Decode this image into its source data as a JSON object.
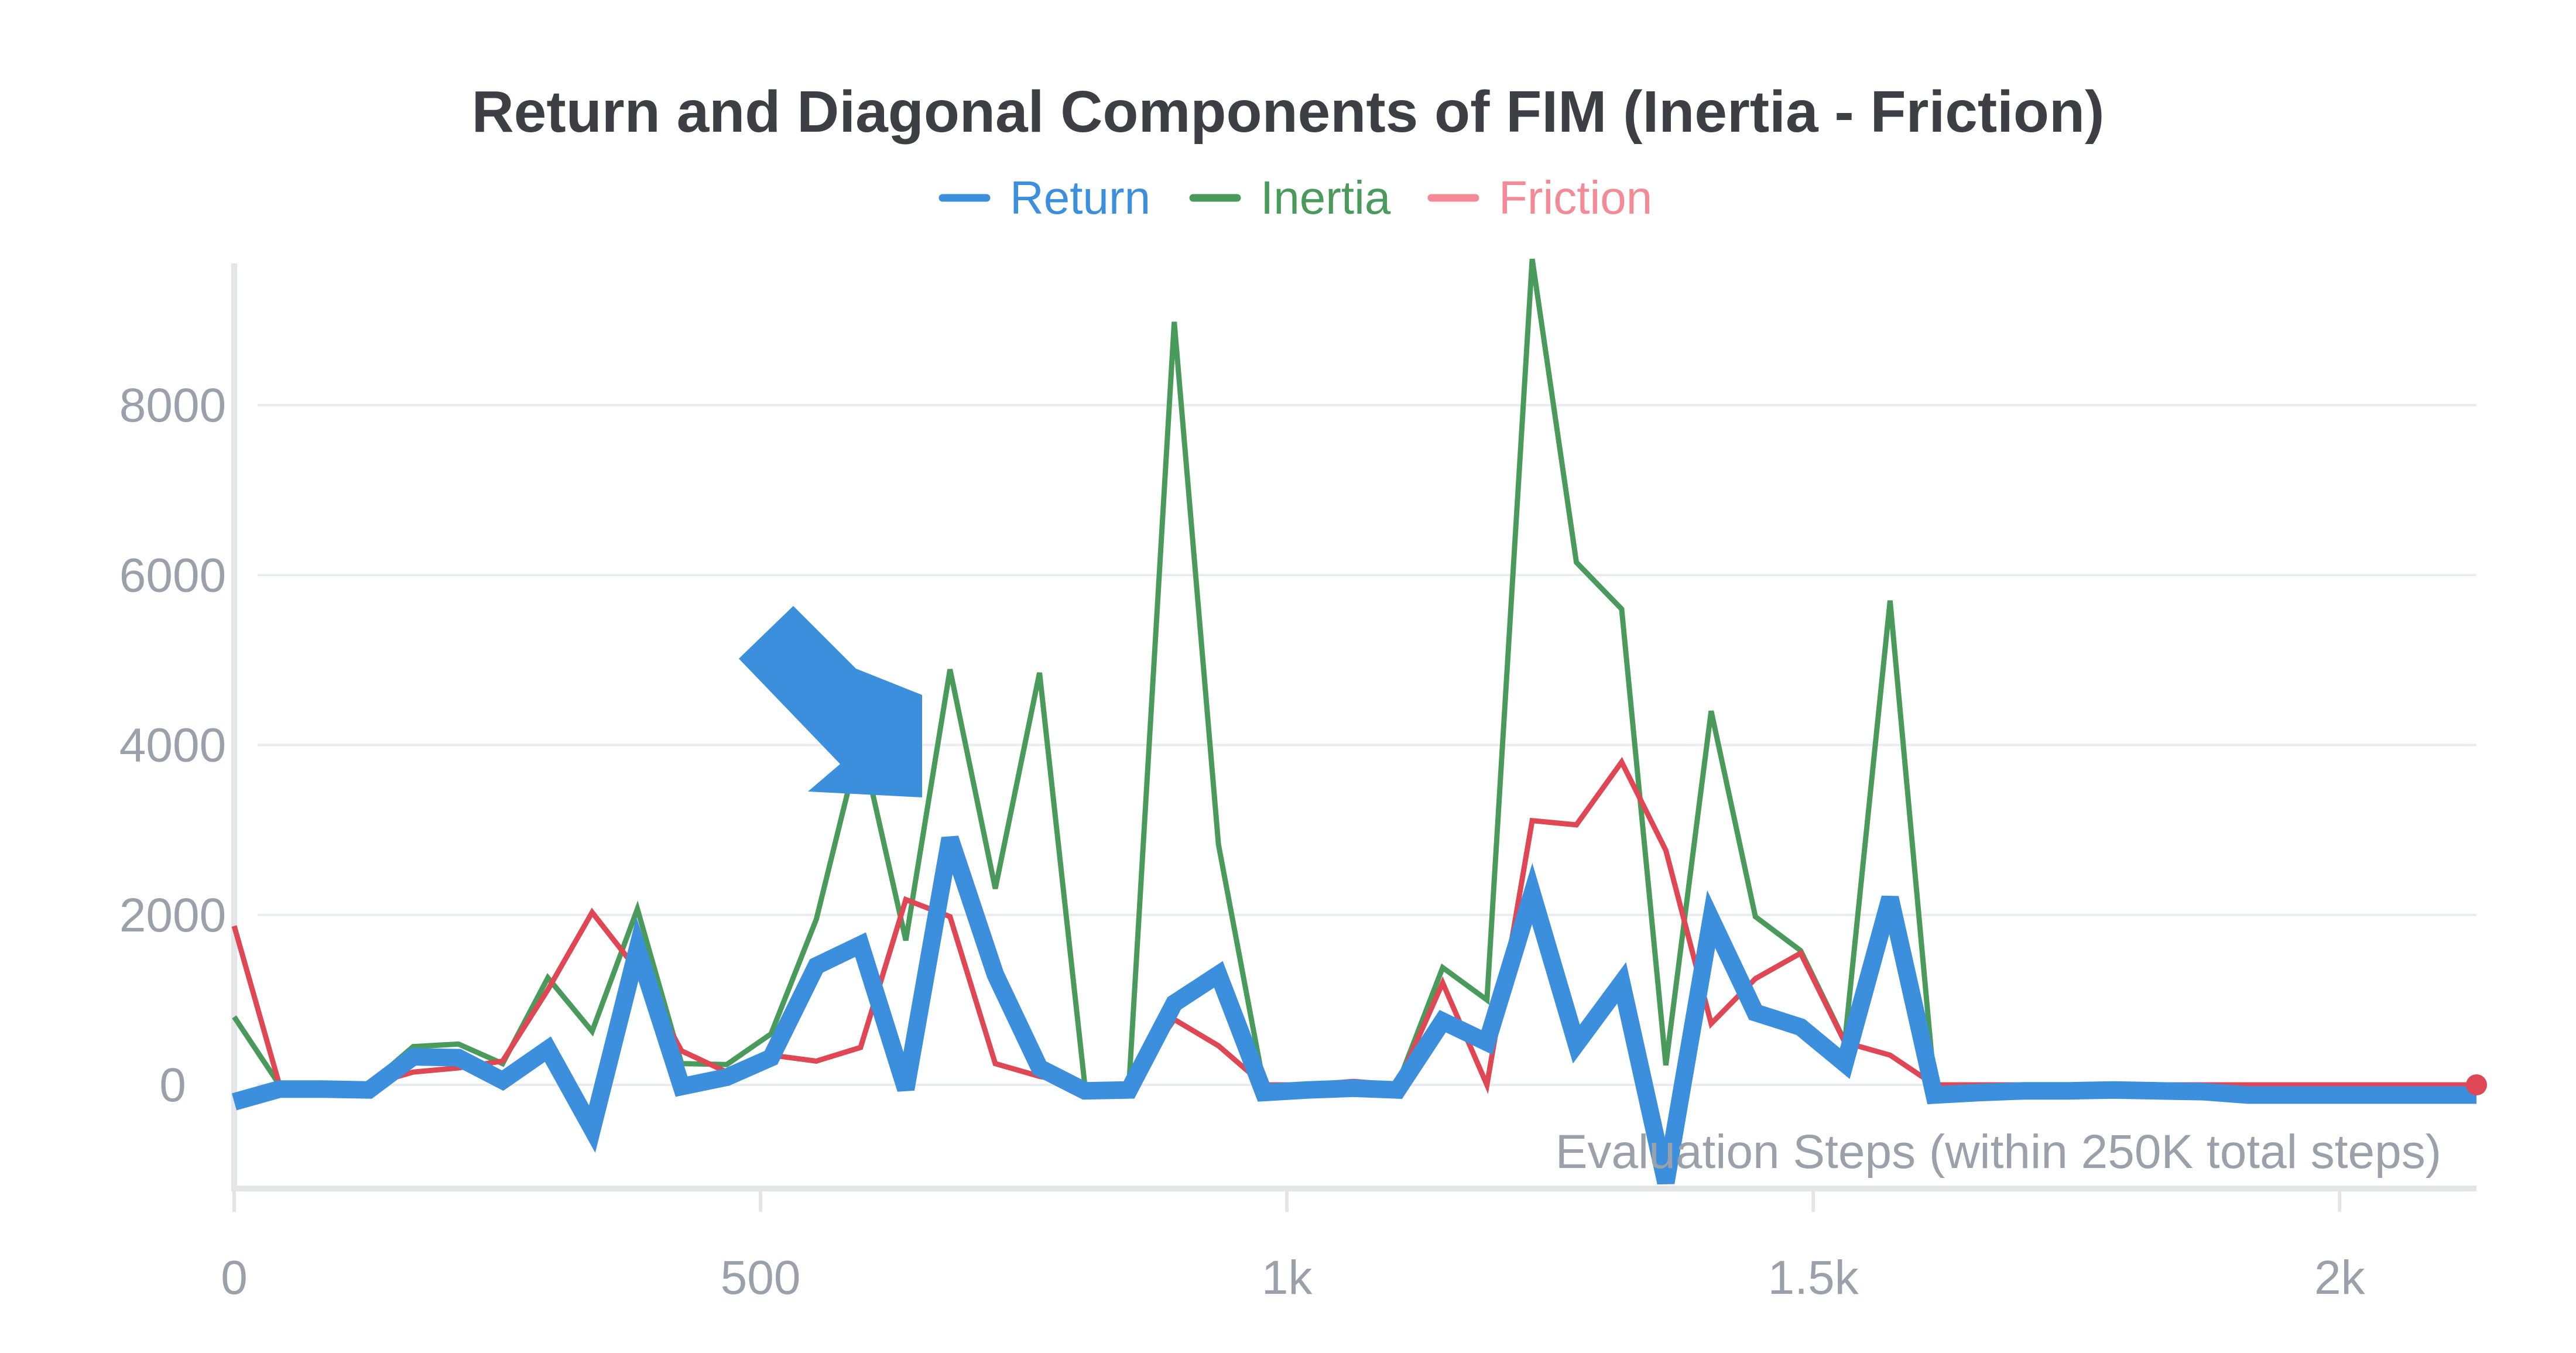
{
  "chart_data": {
    "type": "line",
    "title": "Return and Diagonal Components of FIM (Inertia - Friction)",
    "xlabel": "Evaluation Steps (within 250K total steps)",
    "ylabel": "",
    "xlim": [
      0,
      2130
    ],
    "ylim": [
      -1150,
      9700
    ],
    "x_ticks": [
      0,
      500,
      1000,
      1500,
      2000
    ],
    "x_tick_labels": [
      "0",
      "500",
      "1k",
      "1.5k",
      "2k"
    ],
    "y_ticks": [
      0,
      2000,
      4000,
      6000,
      8000
    ],
    "y_tick_labels": [
      "0",
      "2000",
      "4000",
      "6000",
      "8000"
    ],
    "grid": true,
    "legend_position": "top-center",
    "x": [
      0,
      43,
      85,
      128,
      170,
      213,
      255,
      298,
      340,
      383,
      425,
      468,
      510,
      553,
      595,
      638,
      680,
      723,
      765,
      808,
      850,
      893,
      935,
      978,
      1020,
      1063,
      1105,
      1148,
      1190,
      1233,
      1275,
      1318,
      1360,
      1403,
      1445,
      1488,
      1530,
      1573,
      1615,
      1658,
      1700,
      1743,
      1785,
      1828,
      1870,
      1913,
      1955,
      1998,
      2040,
      2083,
      2130
    ],
    "series": [
      {
        "name": "Return",
        "color": "#3b8fdc",
        "values": [
          -200,
          -50,
          -50,
          -60,
          330,
          320,
          50,
          420,
          -520,
          1600,
          -20,
          90,
          320,
          1400,
          1650,
          -50,
          2900,
          1300,
          200,
          -70,
          -60,
          960,
          1300,
          -90,
          -60,
          -40,
          -60,
          750,
          500,
          2250,
          480,
          1200,
          -1150,
          1950,
          850,
          680,
          250,
          2200,
          -120,
          -90,
          -70,
          -70,
          -60,
          -70,
          -80,
          -120,
          -120,
          -120,
          -120,
          -120,
          -120
        ]
      },
      {
        "name": "Inertia",
        "color": "#4a9a5c",
        "values": [
          800,
          0,
          0,
          0,
          450,
          480,
          250,
          1260,
          630,
          2070,
          250,
          240,
          600,
          1950,
          4060,
          1700,
          4890,
          2310,
          4850,
          0,
          0,
          8980,
          2830,
          0,
          0,
          0,
          0,
          1380,
          1000,
          9720,
          6150,
          5600,
          230,
          4400,
          1980,
          1580,
          510,
          5700,
          0,
          0,
          0,
          0,
          0,
          0,
          0,
          0,
          0,
          0,
          0,
          0,
          0
        ]
      },
      {
        "name": "Friction",
        "color": "#e04755",
        "values": [
          1870,
          0,
          0,
          0,
          150,
          200,
          280,
          1120,
          2030,
          1350,
          400,
          150,
          350,
          280,
          440,
          2180,
          1980,
          250,
          100,
          0,
          0,
          770,
          460,
          0,
          0,
          40,
          0,
          1200,
          0,
          3110,
          3060,
          3800,
          2760,
          720,
          1250,
          1550,
          500,
          350,
          0,
          0,
          0,
          0,
          0,
          0,
          0,
          0,
          0,
          0,
          0,
          0,
          0
        ]
      }
    ],
    "annotations": [
      {
        "type": "arrow",
        "direction": "down-right",
        "color": "#3b8fdc"
      }
    ]
  },
  "legend": [
    {
      "label": "Return",
      "line_color": "#3b8fdc",
      "text_color": "#3b8fdc"
    },
    {
      "label": "Inertia",
      "line_color": "#4a9a5c",
      "text_color": "#4a9a5c"
    },
    {
      "label": "Friction",
      "line_color": "#f48a96",
      "text_color": "#f48a96"
    }
  ]
}
